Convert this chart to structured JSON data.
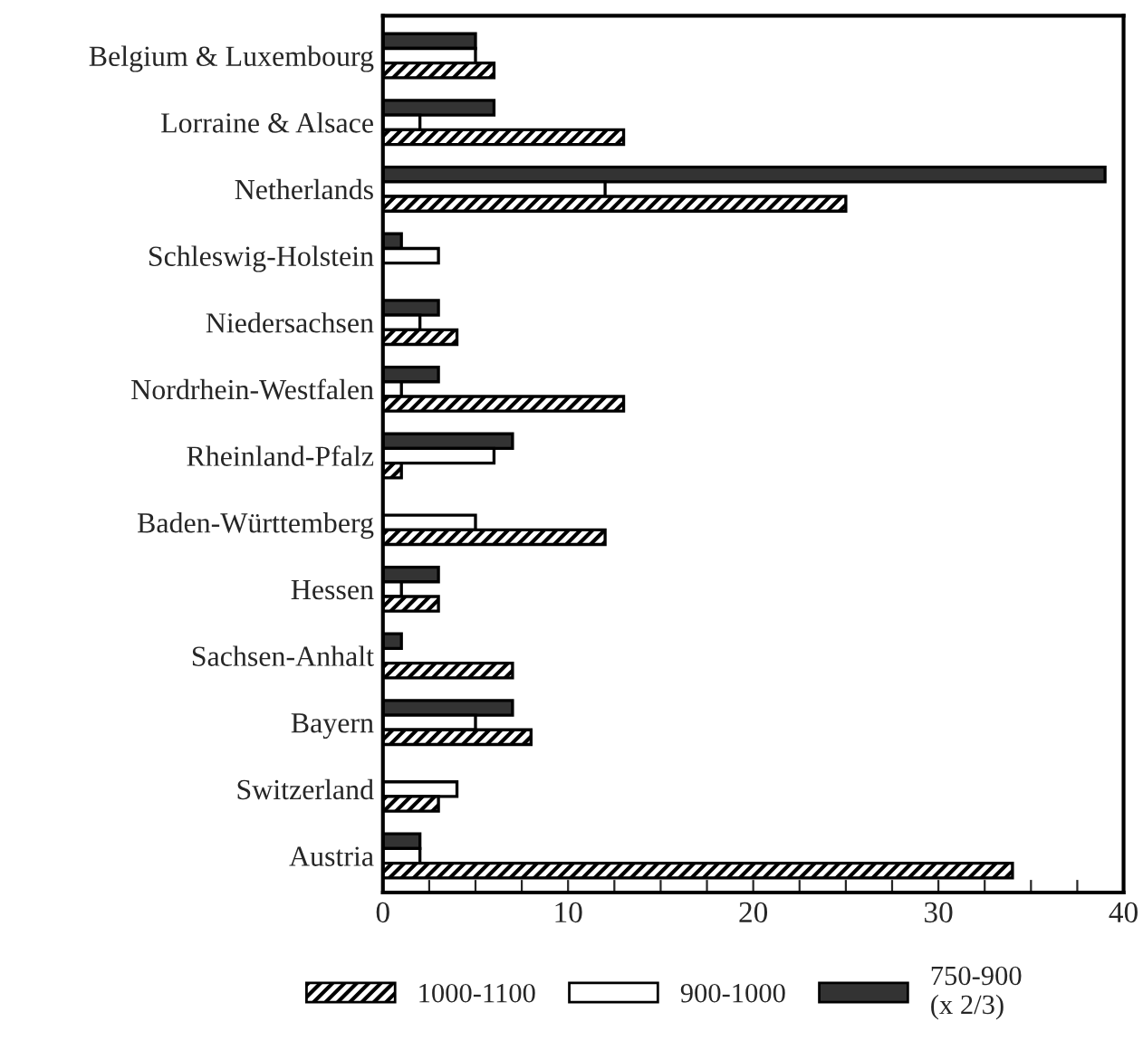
{
  "chart_data": {
    "type": "bar",
    "orientation": "horizontal",
    "categories": [
      "Belgium & Luxembourg",
      "Lorraine & Alsace",
      "Netherlands",
      "Schleswig-Holstein",
      "Niedersachsen",
      "Nordrhein-Westfalen",
      "Rheinland-Pfalz",
      "Baden-Württemberg",
      "Hessen",
      "Sachsen-Anhalt",
      "Bayern",
      "Switzerland",
      "Austria"
    ],
    "series": [
      {
        "name": "750-900\n(x 2/3)",
        "color": "#333333",
        "values": [
          5,
          6,
          39,
          1,
          3,
          3,
          7,
          null,
          3,
          1,
          7,
          null,
          2
        ]
      },
      {
        "name": "900-1000",
        "color": "#ffffff",
        "values": [
          5,
          2,
          12,
          3,
          2,
          1,
          6,
          5,
          1,
          null,
          5,
          4,
          2
        ]
      },
      {
        "name": "1000-1100",
        "color": "#000000",
        "values": [
          6,
          13,
          25,
          null,
          4,
          13,
          1,
          12,
          3,
          7,
          8,
          3,
          34
        ]
      }
    ],
    "xlim": [
      0,
      40
    ],
    "xticks": [
      0,
      {
        "value": 2.5,
        "label": null
      },
      {
        "value": 5,
        "label": null
      },
      {
        "value": 7.5,
        "label": null
      },
      10,
      {
        "value": 12.5,
        "label": null
      },
      {
        "value": 15,
        "label": null
      },
      {
        "value": 17.5,
        "label": null
      },
      20,
      {
        "value": 22.5,
        "label": null
      },
      {
        "value": 25,
        "label": null
      },
      {
        "value": 27.5,
        "label": null
      },
      30,
      {
        "value": 32.5,
        "label": null
      },
      {
        "value": 35,
        "label": null
      },
      {
        "value": 37.5,
        "label": null
      },
      40
    ],
    "grid": false,
    "legend": "bottom"
  }
}
